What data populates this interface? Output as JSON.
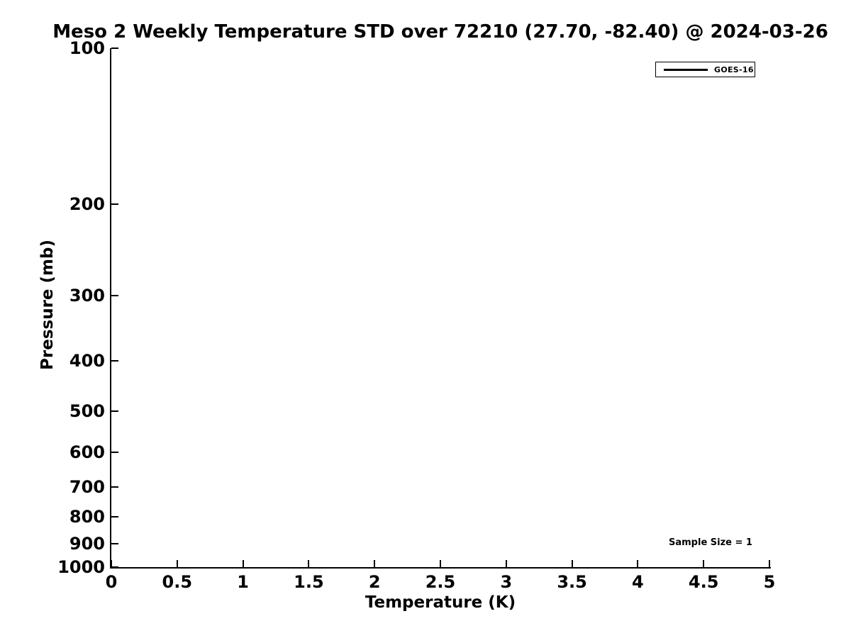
{
  "figure": {
    "background": "#ffffff",
    "foreground": "#000000"
  },
  "chart_data": {
    "type": "line",
    "title": "Meso 2 Weekly Temperature STD over 72210 (27.70, -82.40) @ 2024-03-26",
    "xlabel": "Temperature (K)",
    "ylabel": "Pressure (mb)",
    "xscale": "linear",
    "xlim": [
      0,
      5
    ],
    "xticks": [
      0,
      0.5,
      1,
      1.5,
      2,
      2.5,
      3,
      3.5,
      4,
      4.5,
      5
    ],
    "xtick_labels": [
      "0",
      "0.5",
      "1",
      "1.5",
      "2",
      "2.5",
      "3",
      "3.5",
      "4",
      "4.5",
      "5"
    ],
    "yscale": "log",
    "y_inverted": true,
    "ylim": [
      1000,
      100
    ],
    "yticks": [
      100,
      200,
      300,
      400,
      500,
      600,
      700,
      800,
      900,
      1000
    ],
    "ytick_labels": [
      "100",
      "200",
      "300",
      "400",
      "500",
      "600",
      "700",
      "800",
      "900",
      "1000"
    ],
    "grid": false,
    "series": [
      {
        "name": "GOES-16",
        "color": "#000000",
        "x": [],
        "y": []
      }
    ],
    "legend": {
      "position": "upper-right",
      "entries": [
        {
          "label": "GOES-16",
          "line_color": "#000000"
        }
      ]
    },
    "annotations": [
      {
        "text": "Sample Size = 1",
        "position": "lower-right"
      }
    ]
  }
}
